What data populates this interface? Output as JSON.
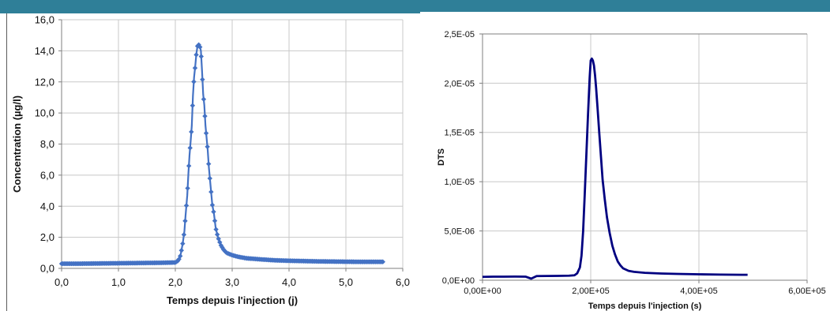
{
  "colors": {
    "header_bar": "#2f7f98",
    "chart1_series": "#4472c4",
    "chart2_series": "#000080",
    "grid": "#c8c8c8",
    "axis": "#7f7f7f"
  },
  "chart_data": [
    {
      "type": "line",
      "title": "",
      "xlabel": "Temps depuis l'injection (j)",
      "ylabel": "Concentration (µg/l)",
      "xlim": [
        0,
        6
      ],
      "ylim": [
        0,
        16
      ],
      "xticks": [
        "0,0",
        "1,0",
        "2,0",
        "3,0",
        "4,0",
        "5,0",
        "6,0"
      ],
      "yticks": [
        "0,0",
        "2,0",
        "4,0",
        "6,0",
        "8,0",
        "10,0",
        "12,0",
        "14,0",
        "16,0"
      ],
      "grid": true,
      "legend": "none",
      "marker": "diamond",
      "series": [
        {
          "name": "",
          "x": [
            0.0,
            0.25,
            0.5,
            0.75,
            1.0,
            1.25,
            1.5,
            1.75,
            2.0,
            2.05,
            2.08,
            2.1,
            2.13,
            2.16,
            2.18,
            2.21,
            2.23,
            2.25,
            2.27,
            2.29,
            2.31,
            2.33,
            2.35,
            2.37,
            2.39,
            2.41,
            2.43,
            2.45,
            2.47,
            2.49,
            2.51,
            2.53,
            2.55,
            2.57,
            2.59,
            2.61,
            2.63,
            2.65,
            2.68,
            2.71,
            2.75,
            2.8,
            2.85,
            2.9,
            3.0,
            3.1,
            3.25,
            3.5,
            3.75,
            4.0,
            4.25,
            4.5,
            4.75,
            5.0,
            5.25,
            5.5,
            5.65
          ],
          "y": [
            0.3,
            0.3,
            0.31,
            0.32,
            0.33,
            0.34,
            0.35,
            0.36,
            0.38,
            0.5,
            0.7,
            1.0,
            1.6,
            2.4,
            3.4,
            4.7,
            6.1,
            7.3,
            8.2,
            9.2,
            11.1,
            12.3,
            13.0,
            13.8,
            14.3,
            14.4,
            14.3,
            14.0,
            12.7,
            11.2,
            10.5,
            9.2,
            8.4,
            7.6,
            6.5,
            5.7,
            4.9,
            4.1,
            3.5,
            2.6,
            2.0,
            1.5,
            1.2,
            1.0,
            0.85,
            0.75,
            0.65,
            0.58,
            0.52,
            0.49,
            0.47,
            0.45,
            0.44,
            0.43,
            0.42,
            0.42,
            0.42
          ]
        }
      ]
    },
    {
      "type": "line",
      "title": "",
      "xlabel": "Temps depuis l'injection (s)",
      "ylabel": "DTS",
      "xlim": [
        0,
        600000
      ],
      "ylim": [
        0,
        2.5e-05
      ],
      "xticks": [
        "0,00E+00",
        "2,00E+05",
        "4,00E+05",
        "6,00E+05"
      ],
      "yticks": [
        "0,0E+00",
        "5,0E-06",
        "1,0E-05",
        "1,5E-05",
        "2,0E-05",
        "2,5E-05"
      ],
      "grid": true,
      "legend": "none",
      "marker": "none",
      "series": [
        {
          "name": "",
          "x": [
            0,
            20000,
            40000,
            60000,
            80000,
            90000,
            100000,
            120000,
            140000,
            160000,
            170000,
            175000,
            180000,
            183000,
            186000,
            189000,
            192000,
            195000,
            198000,
            200000,
            202000,
            204000,
            206000,
            208000,
            210000,
            213000,
            216000,
            219000,
            222000,
            226000,
            230000,
            235000,
            240000,
            245000,
            250000,
            255000,
            260000,
            270000,
            280000,
            300000,
            330000,
            360000,
            400000,
            440000,
            480000,
            490000
          ],
          "y": [
            3.4e-07,
            3.6e-07,
            3.6e-07,
            3.7e-07,
            3.6e-07,
            1.6e-07,
            4.2e-07,
            4.3e-07,
            4.4e-07,
            4.6e-07,
            5e-07,
            7e-07,
            1.3e-06,
            2.5e-06,
            5e-06,
            8.8e-06,
            1.28e-05,
            1.68e-05,
            2.05e-05,
            2.23e-05,
            2.25e-05,
            2.23e-05,
            2.18e-05,
            2.08e-05,
            1.95e-05,
            1.72e-05,
            1.48e-05,
            1.25e-05,
            1.02e-05,
            8.2e-06,
            6.4e-06,
            4.8e-06,
            3.5e-06,
            2.6e-06,
            1.9e-06,
            1.5e-06,
            1.2e-06,
            9.5e-07,
            8.5e-07,
            7.5e-07,
            6.8e-07,
            6.4e-07,
            6e-07,
            5.7e-07,
            5.5e-07,
            5.5e-07
          ]
        }
      ]
    }
  ]
}
